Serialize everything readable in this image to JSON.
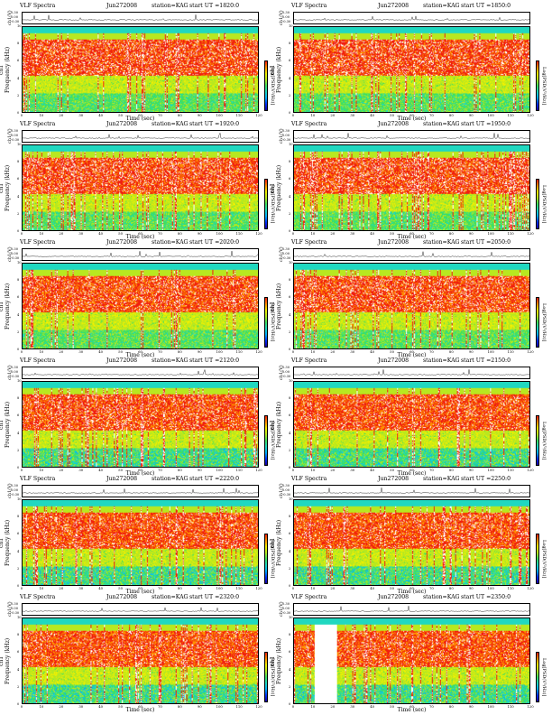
{
  "chart_data": [
    {
      "type": "heatmap",
      "header_left": "VLF Spectra",
      "date": "Jun272008",
      "station": "station=KAG",
      "start": "start UT =1820:0",
      "ch_label": "ch1(V)",
      "ch_ticks": [
        "0.30",
        "0.00",
        "-0.30"
      ],
      "ylabel": "Frequency (kHz)",
      "ylabel_prefix": "ch1",
      "yticks": [
        "0",
        "2",
        "4",
        "6",
        "8",
        "10"
      ],
      "xlabel": "Time (sec)",
      "xticks": [
        "0",
        "10",
        "20",
        "30",
        "40",
        "50",
        "60",
        "70",
        "80",
        "90",
        "100",
        "110",
        "120"
      ],
      "xlim": [
        0,
        120
      ],
      "ylim": [
        0,
        10
      ],
      "colorbar_label": "Log[PSD(V²/Hz)]"
    },
    {
      "type": "heatmap",
      "header_left": "VLF Spectra",
      "date": "Jun272008",
      "station": "station=KAG",
      "start": "start UT =1850:0",
      "ch_label": "ch1(V)",
      "ch_ticks": [
        "0.30",
        "0.00",
        "-0.30"
      ],
      "ylabel": "Frequency (kHz)",
      "ylabel_prefix": "ch1",
      "yticks": [
        "0",
        "2",
        "4",
        "6",
        "8",
        "10"
      ],
      "xlabel": "Time (sec)",
      "xticks": [
        "0",
        "10",
        "20",
        "30",
        "40",
        "50",
        "60",
        "70",
        "80",
        "90",
        "100",
        "110",
        "120"
      ],
      "xlim": [
        0,
        120
      ],
      "ylim": [
        0,
        10
      ],
      "colorbar_label": "Log[PSD(V²/Hz)]"
    },
    {
      "type": "heatmap",
      "header_left": "VLF Spectra",
      "date": "Jun272008",
      "station": "station=KAG",
      "start": "start UT =1920:0",
      "ch_label": "ch1(V)",
      "ch_ticks": [
        "0.30",
        "0.00",
        "-0.30"
      ],
      "ylabel": "Frequency (kHz)",
      "ylabel_prefix": "ch1",
      "yticks": [
        "0",
        "2",
        "4",
        "6",
        "8",
        "10"
      ],
      "xlabel": "Time (sec)",
      "xticks": [
        "0",
        "10",
        "20",
        "30",
        "40",
        "50",
        "60",
        "70",
        "80",
        "90",
        "100",
        "110",
        "120"
      ],
      "xlim": [
        0,
        120
      ],
      "ylim": [
        0,
        10
      ],
      "colorbar_label": "Log[PSD(V²/Hz)]"
    },
    {
      "type": "heatmap",
      "header_left": "VLF Spectra",
      "date": "Jun272008",
      "station": "station=KAG",
      "start": "start UT =1950:0",
      "ch_label": "ch1(V)",
      "ch_ticks": [
        "0.30",
        "0.00",
        "-0.30"
      ],
      "ylabel": "Frequency (kHz)",
      "ylabel_prefix": "ch1",
      "yticks": [
        "0",
        "2",
        "4",
        "6",
        "8",
        "10"
      ],
      "xlabel": "Time (sec)",
      "xticks": [
        "0",
        "10",
        "20",
        "30",
        "40",
        "50",
        "60",
        "70",
        "80",
        "90",
        "100",
        "110",
        "120"
      ],
      "xlim": [
        0,
        120
      ],
      "ylim": [
        0,
        10
      ],
      "colorbar_label": "Log[PSD(V²/Hz)]"
    },
    {
      "type": "heatmap",
      "header_left": "VLF Spectra",
      "date": "Jun272008",
      "station": "station=KAG",
      "start": "start UT =2020:0",
      "ch_label": "ch1(V)",
      "ch_ticks": [
        "0.30",
        "0.00",
        "-0.30"
      ],
      "ylabel": "Frequency (kHz)",
      "ylabel_prefix": "ch1",
      "yticks": [
        "0",
        "2",
        "4",
        "6",
        "8",
        "10"
      ],
      "xlabel": "Time (sec)",
      "xticks": [
        "0",
        "10",
        "20",
        "30",
        "40",
        "50",
        "60",
        "70",
        "80",
        "90",
        "100",
        "110",
        "120"
      ],
      "xlim": [
        0,
        120
      ],
      "ylim": [
        0,
        10
      ],
      "colorbar_label": "Log[PSD(V²/Hz)]"
    },
    {
      "type": "heatmap",
      "header_left": "VLF Spectra",
      "date": "Jun272008",
      "station": "station=KAG",
      "start": "start UT =2050:0",
      "ch_label": "ch1(V)",
      "ch_ticks": [
        "0.30",
        "0.00",
        "-0.30"
      ],
      "ylabel": "Frequency (kHz)",
      "ylabel_prefix": "ch1",
      "yticks": [
        "0",
        "2",
        "4",
        "6",
        "8",
        "10"
      ],
      "xlabel": "Time (sec)",
      "xticks": [
        "0",
        "10",
        "20",
        "30",
        "40",
        "50",
        "60",
        "70",
        "80",
        "90",
        "100",
        "110",
        "120"
      ],
      "xlim": [
        0,
        120
      ],
      "ylim": [
        0,
        10
      ],
      "colorbar_label": "Log[PSD(V²/Hz)]"
    },
    {
      "type": "heatmap",
      "header_left": "VLF Spectra",
      "date": "Jun272008",
      "station": "station=KAG",
      "start": "start UT =2120:0",
      "ch_label": "ch1(V)",
      "ch_ticks": [
        "0.30",
        "0.00",
        "-0.30"
      ],
      "ylabel": "Frequency (kHz)",
      "ylabel_prefix": "ch1",
      "yticks": [
        "0",
        "2",
        "4",
        "6",
        "8",
        "10"
      ],
      "xlabel": "Time (sec)",
      "xticks": [
        "0",
        "10",
        "20",
        "30",
        "40",
        "50",
        "60",
        "70",
        "80",
        "90",
        "100",
        "110",
        "120"
      ],
      "xlim": [
        0,
        120
      ],
      "ylim": [
        0,
        10
      ],
      "colorbar_label": "Log[PSD(V²/Hz)]"
    },
    {
      "type": "heatmap",
      "header_left": "VLF Spectra",
      "date": "Jun272008",
      "station": "station=KAG",
      "start": "start UT =2150:0",
      "ch_label": "ch1(V)",
      "ch_ticks": [
        "0.30",
        "0.00",
        "-0.30"
      ],
      "ylabel": "Frequency (kHz)",
      "ylabel_prefix": "ch1",
      "yticks": [
        "0",
        "2",
        "4",
        "6",
        "8",
        "10"
      ],
      "xlabel": "Time (sec)",
      "xticks": [
        "0",
        "10",
        "20",
        "30",
        "40",
        "50",
        "60",
        "70",
        "80",
        "90",
        "100",
        "110",
        "120"
      ],
      "xlim": [
        0,
        120
      ],
      "ylim": [
        0,
        10
      ],
      "colorbar_label": "Log[PSD(V²/Hz)]"
    },
    {
      "type": "heatmap",
      "header_left": "VLF Spectra",
      "date": "Jun272008",
      "station": "station=KAG",
      "start": "start UT =2220:0",
      "ch_label": "ch1(V)",
      "ch_ticks": [
        "0.30",
        "0.00",
        "-0.30"
      ],
      "ylabel": "Frequency (kHz)",
      "ylabel_prefix": "ch1",
      "yticks": [
        "0",
        "2",
        "4",
        "6",
        "8",
        "10"
      ],
      "xlabel": "Time (sec)",
      "xticks": [
        "0",
        "10",
        "20",
        "30",
        "40",
        "50",
        "60",
        "70",
        "80",
        "90",
        "100",
        "110",
        "120"
      ],
      "xlim": [
        0,
        120
      ],
      "ylim": [
        0,
        10
      ],
      "colorbar_label": "Log[PSD(V²/Hz)]"
    },
    {
      "type": "heatmap",
      "header_left": "VLF Spectra",
      "date": "Jun272008",
      "station": "station=KAG",
      "start": "start UT =2250:0",
      "ch_label": "ch1(V)",
      "ch_ticks": [
        "0.30",
        "0.00",
        "-0.30"
      ],
      "ylabel": "Frequency (kHz)",
      "ylabel_prefix": "ch1",
      "yticks": [
        "0",
        "2",
        "4",
        "6",
        "8",
        "10"
      ],
      "xlabel": "Time (sec)",
      "xticks": [
        "0",
        "10",
        "20",
        "30",
        "40",
        "50",
        "60",
        "70",
        "80",
        "90",
        "100",
        "110",
        "120"
      ],
      "xlim": [
        0,
        120
      ],
      "ylim": [
        0,
        10
      ],
      "colorbar_label": "Log[PSD(V²/Hz)]"
    },
    {
      "type": "heatmap",
      "header_left": "VLF Spectra",
      "date": "Jun272008",
      "station": "station=KAG",
      "start": "start UT =2320:0",
      "ch_label": "ch1(V)",
      "ch_ticks": [
        "0.30",
        "0.00",
        "-0.30"
      ],
      "ylabel": "Frequency (kHz)",
      "ylabel_prefix": "ch1",
      "yticks": [
        "0",
        "2",
        "4",
        "6",
        "8",
        "10"
      ],
      "xlabel": "Time (sec)",
      "xticks": [
        "0",
        "10",
        "20",
        "30",
        "40",
        "50",
        "60",
        "70",
        "80",
        "90",
        "100",
        "110",
        "120"
      ],
      "xlim": [
        0,
        120
      ],
      "ylim": [
        0,
        10
      ],
      "colorbar_label": "Log[PSD(V²/Hz)]"
    },
    {
      "type": "heatmap",
      "header_left": "VLF Spectra",
      "date": "Jun272008",
      "station": "station=KAG",
      "start": "start UT =2350:0",
      "ch_label": "ch1(V)",
      "ch_ticks": [
        "0.30",
        "0.00",
        "-0.30"
      ],
      "ylabel": "Frequency (kHz)",
      "ylabel_prefix": "ch1",
      "yticks": [
        "0",
        "2",
        "4",
        "6",
        "8",
        "10"
      ],
      "xlabel": "Time (sec)",
      "xticks": [
        "0",
        "10",
        "20",
        "30",
        "40",
        "50",
        "60",
        "70",
        "80",
        "90",
        "100",
        "110",
        "120"
      ],
      "xlim": [
        0,
        120
      ],
      "ylim": [
        0,
        10
      ],
      "colorbar_label": "Log[PSD(V²/Hz)]"
    }
  ],
  "colormap": [
    "#1a00a0",
    "#0030ff",
    "#00b0ff",
    "#20d8c0",
    "#40e060",
    "#b8e820",
    "#f0f000",
    "#ff9000",
    "#f02010",
    "#ffffff"
  ]
}
